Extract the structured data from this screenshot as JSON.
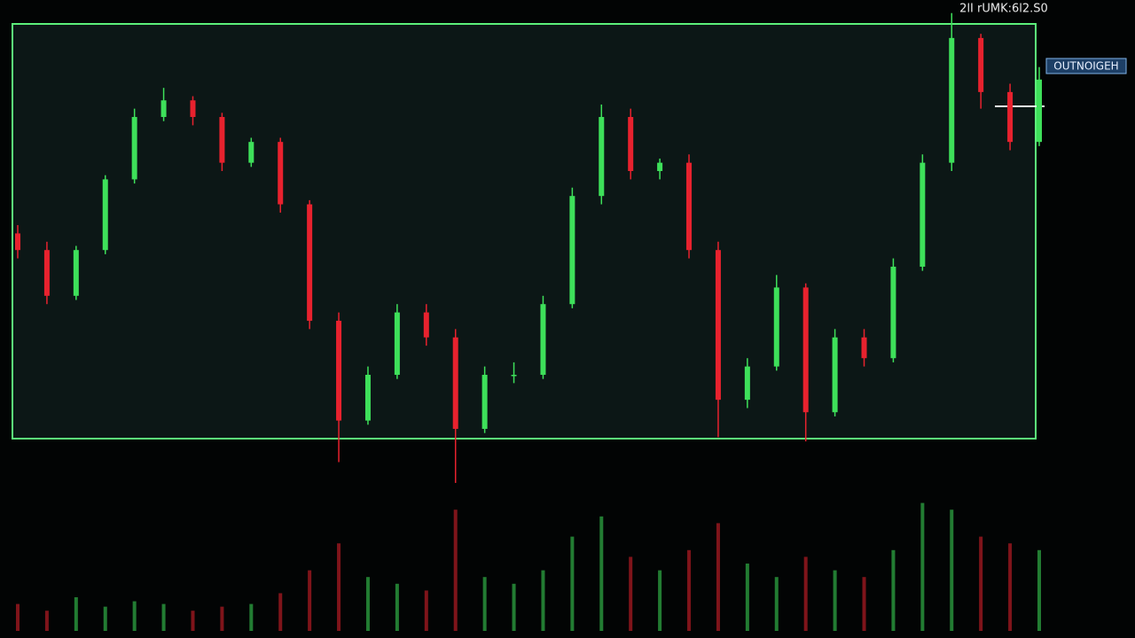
{
  "chart_data": {
    "type": "candlestick",
    "header_text": "2lI rUMK:6l2.S0",
    "price_tag": "OUTNOIGEH",
    "up_color": "#3ee05a",
    "down_color": "#e8222e",
    "open": [
      50,
      46,
      35,
      46,
      63,
      78,
      82,
      78,
      67,
      72,
      57,
      29,
      5,
      16,
      31,
      25,
      3,
      16,
      16,
      33,
      59,
      78,
      65,
      67,
      46,
      10,
      18,
      37,
      7,
      25,
      20,
      42,
      67,
      97,
      84,
      72
    ],
    "high": [
      52,
      48,
      47,
      64,
      80,
      85,
      83,
      79,
      73,
      73,
      58,
      31,
      18,
      33,
      33,
      27,
      18,
      19,
      35,
      61,
      81,
      80,
      68,
      69,
      48,
      20,
      40,
      38,
      27,
      27,
      44,
      69,
      103,
      98,
      86,
      90
    ],
    "low": [
      44,
      33,
      34,
      45,
      62,
      77,
      76,
      65,
      66,
      55,
      27,
      -5,
      4,
      15,
      23,
      -10,
      2,
      14,
      15,
      32,
      57,
      63,
      63,
      44,
      1,
      8,
      17,
      0,
      6,
      18,
      19,
      41,
      65,
      80,
      70,
      71
    ],
    "close": [
      46,
      35,
      46,
      63,
      78,
      82,
      78,
      67,
      72,
      57,
      29,
      5,
      16,
      31,
      25,
      3,
      16,
      16,
      33,
      59,
      78,
      65,
      67,
      46,
      10,
      18,
      37,
      7,
      25,
      20,
      42,
      67,
      97,
      84,
      72,
      87
    ],
    "ylim": [
      -10,
      104
    ],
    "volume": {
      "values": [
        20,
        15,
        25,
        18,
        22,
        20,
        15,
        18,
        20,
        28,
        45,
        65,
        40,
        35,
        30,
        90,
        40,
        35,
        45,
        70,
        85,
        55,
        45,
        60,
        80,
        50,
        40,
        55,
        45,
        40,
        60,
        95,
        90,
        70,
        65,
        60
      ],
      "ylim": [
        0,
        100
      ]
    }
  }
}
